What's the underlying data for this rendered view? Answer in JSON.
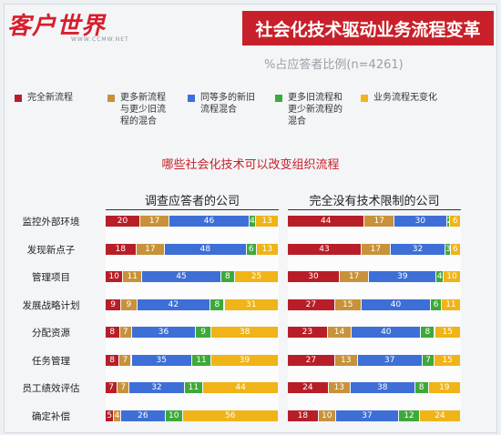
{
  "header": {
    "logo_text": "客户世界",
    "logo_sub": "WWW.CCMW.NET",
    "title": "社会化技术驱动业务流程变革",
    "subtitle": "%占应答者比例(n=4261)"
  },
  "question": "哪些社会化技术可以改变组织流程",
  "legend": [
    {
      "label": "完全新流程",
      "color": "#b81e28"
    },
    {
      "label": "更多新流程\n与更少旧流\n程的混合",
      "color": "#c8923a"
    },
    {
      "label": "同等多的新旧\n流程混合",
      "color": "#3d6fd6"
    },
    {
      "label": "更多旧流程和\n更少新流程的\n混合",
      "color": "#3ea93a"
    },
    {
      "label": "业务流程无变化",
      "color": "#f0b418"
    }
  ],
  "chart_data": [
    {
      "type": "bar",
      "stacked": true,
      "orientation": "horizontal",
      "title": "调查应答者的公司",
      "categories": [
        "监控外部环境",
        "发现新点子",
        "管理项目",
        "发展战略计划",
        "分配资源",
        "任务管理",
        "员工绩效评估",
        "确定补偿"
      ],
      "series": [
        {
          "name": "完全新流程",
          "values": [
            20,
            18,
            10,
            9,
            8,
            8,
            7,
            5
          ]
        },
        {
          "name": "更多新流程与更少旧流程的混合",
          "values": [
            17,
            17,
            11,
            9,
            7,
            7,
            7,
            4
          ]
        },
        {
          "name": "同等多的新旧流程混合",
          "values": [
            46,
            48,
            45,
            42,
            36,
            35,
            32,
            26
          ]
        },
        {
          "name": "更多旧流程和更少新流程的混合",
          "values": [
            4,
            6,
            8,
            8,
            9,
            11,
            11,
            10
          ]
        },
        {
          "name": "业务流程无变化",
          "values": [
            13,
            13,
            25,
            31,
            38,
            39,
            44,
            56
          ]
        }
      ]
    },
    {
      "type": "bar",
      "stacked": true,
      "orientation": "horizontal",
      "title": "完全没有技术限制的公司",
      "categories": [
        "监控外部环境",
        "发现新点子",
        "管理项目",
        "发展战略计划",
        "分配资源",
        "任务管理",
        "员工绩效评估",
        "确定补偿"
      ],
      "series": [
        {
          "name": "完全新流程",
          "values": [
            44,
            43,
            30,
            27,
            23,
            27,
            24,
            18
          ]
        },
        {
          "name": "更多新流程与更少旧流程的混合",
          "values": [
            17,
            17,
            17,
            15,
            14,
            13,
            13,
            10
          ]
        },
        {
          "name": "同等多的新旧流程混合",
          "values": [
            30,
            32,
            39,
            40,
            40,
            37,
            38,
            37
          ]
        },
        {
          "name": "更多旧流程和更少新流程的混合",
          "values": [
            2,
            3,
            4,
            6,
            8,
            7,
            8,
            12
          ]
        },
        {
          "name": "业务流程无变化",
          "values": [
            6,
            6,
            10,
            11,
            15,
            15,
            19,
            24
          ]
        }
      ]
    }
  ]
}
